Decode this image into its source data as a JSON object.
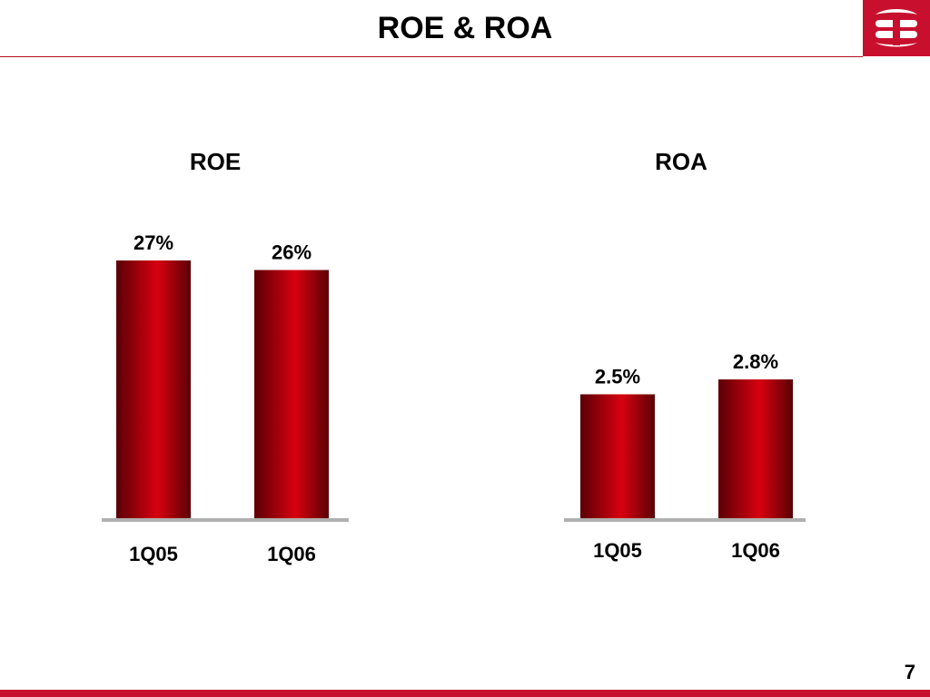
{
  "slide": {
    "title": "ROE & ROA",
    "page_number": "7"
  },
  "colors": {
    "accent": "#c8102e",
    "bar_dark": "#6a0008",
    "bar_light": "#d80010",
    "baseline": "#b0b0b0"
  },
  "chart_data": [
    {
      "type": "bar",
      "title": "ROE",
      "categories": [
        "1Q05",
        "1Q06"
      ],
      "values": [
        27,
        26
      ],
      "labels": [
        "27%",
        "26%"
      ],
      "ylim": [
        0,
        27
      ]
    },
    {
      "type": "bar",
      "title": "ROA",
      "categories": [
        "1Q05",
        "1Q06"
      ],
      "values": [
        2.5,
        2.8
      ],
      "labels": [
        "2.5%",
        "2.8%"
      ],
      "ylim": [
        0,
        5.2
      ]
    }
  ]
}
